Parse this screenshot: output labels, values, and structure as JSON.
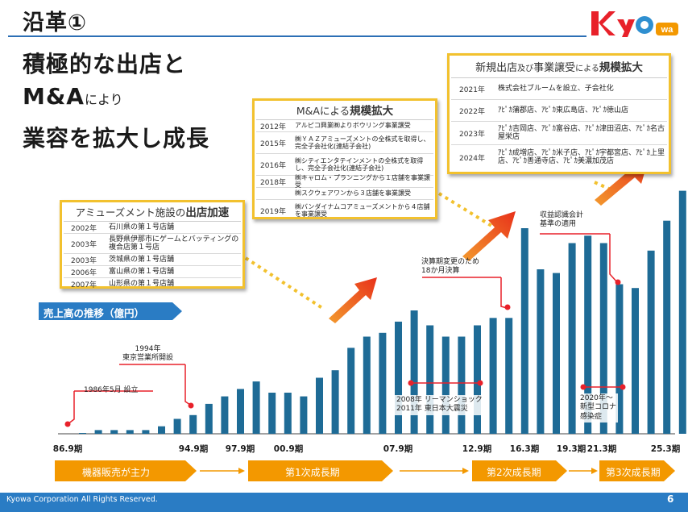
{
  "title": "沿革①",
  "headline": {
    "line1": "積極的な出店と",
    "line2_main": "M&A",
    "line2_small": "により",
    "line3": "業容を拡大し成長"
  },
  "logo": {
    "text": "KyOwa",
    "colors": {
      "k": "#e8212a",
      "y": "#e8212a",
      "o": "#2f8fd0",
      "wa": "#f39800"
    }
  },
  "amusement_box": {
    "head_plain": "アミューズメント施設の",
    "head_bold": "出店加速",
    "rows": [
      {
        "year": "2002年",
        "text": "石川県の第１号店舗"
      },
      {
        "year": "2003年",
        "text": "長野県伊那市にゲームとバッティングの複合店第１号店"
      },
      {
        "year": "2003年",
        "text": "茨城県の第１号店舗"
      },
      {
        "year": "2006年",
        "text": "富山県の第１号店舗"
      },
      {
        "year": "2007年",
        "text": "山形県の第１号店舗"
      }
    ]
  },
  "ma_box": {
    "head_plain": "M&Aによる",
    "head_bold": "規模拡大",
    "rows": [
      {
        "year": "2012年",
        "text": "アルピコ興業㈱よりボウリング事業譲受"
      },
      {
        "year": "2015年",
        "text": "㈱ＹＡＺアミューズメントの全株式を取得し、完全子会社化(連結子会社)"
      },
      {
        "year": "2016年",
        "text": "㈱シティエンタテインメントの全株式を取得し、完全子会社化(連結子会社)"
      },
      {
        "year": "2018年",
        "text": "㈱キャロム・プランニングから１店舗を事業譲受"
      },
      {
        "year": "",
        "text": "㈱スクウェアワンから３店舗を事業譲受"
      },
      {
        "year": "2019年",
        "text": "㈱バンダイナムコアミューズメントから４店舗を事業譲受"
      }
    ]
  },
  "new_box": {
    "head_plain1": "新規出店",
    "head_small": "及び",
    "head_plain2": "事業譲受",
    "head_small2": "による",
    "head_bold": "規模拡大",
    "rows": [
      {
        "year": "2021年",
        "text": "株式会社ブルームを設立、子会社化"
      },
      {
        "year": "2022年",
        "text": "ｱﾋﾟｶ蒲郡店、ｱﾋﾟｶ東広島店、ｱﾋﾟｶ徳山店"
      },
      {
        "year": "2023年",
        "text": "ｱﾋﾟｶ吉岡店、ｱﾋﾟｶ富谷店、ｱﾋﾟｶ津田沼店、ｱﾋﾟｶ名古屋栄店"
      },
      {
        "year": "2024年",
        "text": "ｱﾋﾟｶ成増店、ｱﾋﾟｶ米子店、ｱﾋﾟｶ宇都宮店、ｱﾋﾟｶ上里店、ｱﾋﾟｶ善通寺店、ｱﾋﾟｶ美濃加茂店"
      }
    ]
  },
  "sales_label": "売上高の推移（億円）",
  "notes": {
    "founded": "1986年5月 設立",
    "tokyo": "1994年\n東京営業所開設",
    "fiscal": "決算期変更のため\n18か月決算",
    "accounting": "収益認識会計\n基準の適用",
    "lehman": "2008年 リーマンショック\n2011年 東日本大震災",
    "covid": "2020年～\n新型コロナ\n感染症"
  },
  "chart_data": {
    "type": "bar",
    "x_tick_labels": [
      "86.9期",
      "94.9期",
      "97.9期",
      "00.9期",
      "07.9期",
      "12.9期",
      "16.3期",
      "19.3期",
      "21.3期",
      "25.3期"
    ],
    "values": [
      0,
      1,
      1,
      1,
      1,
      2,
      4,
      5,
      8,
      10,
      12,
      14,
      11,
      11,
      10,
      15,
      17,
      23,
      26,
      27,
      30,
      33,
      29,
      26,
      26,
      29,
      31,
      31,
      55,
      44,
      43,
      51,
      53,
      51,
      40,
      39,
      49,
      57,
      65
    ],
    "bar_color": "#1e6b96"
  },
  "phases": [
    "機器販売が主力",
    "第1次成長期",
    "第2次成長期",
    "第3次成長期"
  ],
  "footer": "Kyowa Corporation All Rights Reserved.",
  "page_number": "6"
}
